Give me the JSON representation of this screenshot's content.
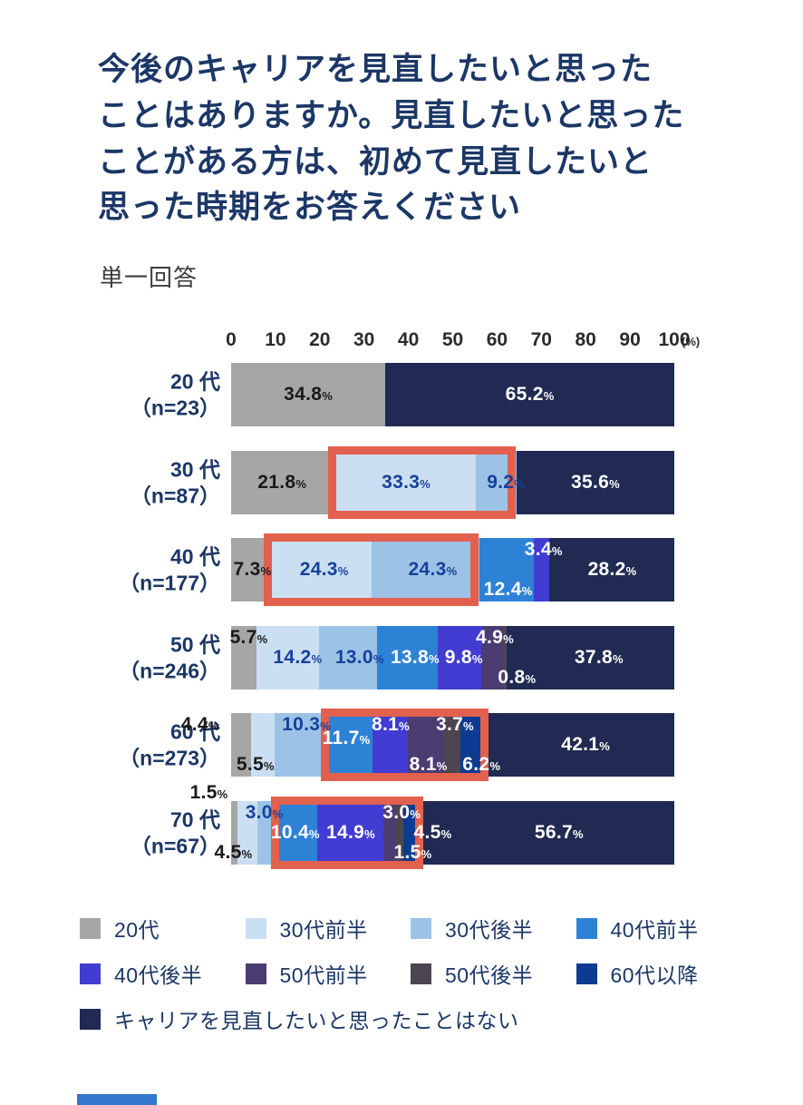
{
  "title": "今後のキャリアを見直したいと思った\nことはありますか。見直したいと思った\nことがある方は、初めて見直したいと\n思った時期をお答えください",
  "subtitle": "単一回答",
  "chart_data": {
    "type": "bar",
    "stacked": true,
    "orientation": "horizontal",
    "axis": {
      "ticks": [
        0,
        10,
        20,
        30,
        40,
        50,
        60,
        70,
        80,
        90,
        100
      ],
      "unit": "(%)",
      "range": [
        0,
        100
      ],
      "grid": false
    },
    "highlight_color": "#E2604E",
    "label_colors": {
      "black": "#1A1A1A",
      "blue": "#17419B",
      "white": "#FFFFFF"
    },
    "categories": [
      {
        "name": "20代",
        "color": "#A6A6A6"
      },
      {
        "name": "30代前半",
        "color": "#CBDFF2"
      },
      {
        "name": "30代後半",
        "color": "#9CC3E6"
      },
      {
        "name": "40代前半",
        "color": "#2E82D6"
      },
      {
        "name": "40代後半",
        "color": "#423CD2"
      },
      {
        "name": "50代前半",
        "color": "#4B3C72"
      },
      {
        "name": "50代後半",
        "color": "#4D4550"
      },
      {
        "name": "60代以降",
        "color": "#0E3B92"
      },
      {
        "name": "キャリアを見直したいと思ったことはない",
        "color": "#202A52"
      }
    ],
    "legend_layout": [
      4,
      4,
      1
    ],
    "rows": [
      {
        "label": "20 代",
        "n_label": "（n=23）",
        "segments": [
          {
            "category": "20代",
            "value": 34.8
          },
          {
            "category": "キャリアを見直したいと思ったことはない",
            "value": 65.2
          }
        ],
        "highlight": null,
        "value_labels": [
          {
            "text": "34.8%",
            "x": 17.4,
            "slot": "mid",
            "color": "black"
          },
          {
            "text": "65.2%",
            "x": 67.4,
            "slot": "mid",
            "color": "white"
          }
        ]
      },
      {
        "label": "30 代",
        "n_label": "（n=87）",
        "segments": [
          {
            "category": "20代",
            "value": 21.8
          },
          {
            "category": "30代前半",
            "value": 33.3
          },
          {
            "category": "30代後半",
            "value": 9.2
          },
          {
            "category": "キャリアを見直したいと思ったことはない",
            "value": 35.6
          }
        ],
        "highlight": {
          "from": 21.8,
          "to": 64.3
        },
        "value_labels": [
          {
            "text": "21.8%",
            "x": 11.5,
            "slot": "mid",
            "color": "black"
          },
          {
            "text": "33.3%",
            "x": 39.5,
            "slot": "mid",
            "color": "blue"
          },
          {
            "text": "9.2%",
            "x": 62.0,
            "slot": "mid",
            "color": "blue"
          },
          {
            "text": "35.6%",
            "x": 82.2,
            "slot": "mid",
            "color": "white"
          }
        ]
      },
      {
        "label": "40 代",
        "n_label": "（n=177）",
        "segments": [
          {
            "category": "20代",
            "value": 7.3
          },
          {
            "category": "30代前半",
            "value": 24.3
          },
          {
            "category": "30代後半",
            "value": 24.3
          },
          {
            "category": "40代前半",
            "value": 12.4
          },
          {
            "category": "40代後半",
            "value": 3.4
          },
          {
            "category": "キャリアを見直したいと思ったことはない",
            "value": 28.2
          }
        ],
        "highlight": {
          "from": 7.3,
          "to": 55.9
        },
        "value_labels": [
          {
            "text": "7.3%",
            "x": 4.8,
            "slot": "mid",
            "color": "black"
          },
          {
            "text": "24.3%",
            "x": 21.0,
            "slot": "mid",
            "color": "blue"
          },
          {
            "text": "24.3%",
            "x": 45.5,
            "slot": "mid",
            "color": "blue"
          },
          {
            "text": "12.4%",
            "x": 62.5,
            "slot": "bottom",
            "color": "white"
          },
          {
            "text": "3.4%",
            "x": 70.5,
            "slot": "top",
            "color": "white"
          },
          {
            "text": "28.2%",
            "x": 86.0,
            "slot": "mid",
            "color": "white"
          }
        ]
      },
      {
        "label": "50 代",
        "n_label": "（n=246）",
        "segments": [
          {
            "category": "20代",
            "value": 5.7
          },
          {
            "category": "30代前半",
            "value": 14.2
          },
          {
            "category": "30代後半",
            "value": 13.0
          },
          {
            "category": "40代前半",
            "value": 13.8
          },
          {
            "category": "40代後半",
            "value": 9.8
          },
          {
            "category": "50代前半",
            "value": 4.9
          },
          {
            "category": "50代後半",
            "value": 0.8
          },
          {
            "category": "キャリアを見直したいと思ったことはない",
            "value": 37.8
          }
        ],
        "highlight": null,
        "value_labels": [
          {
            "text": "5.7%",
            "x": 4.0,
            "slot": "top",
            "color": "black"
          },
          {
            "text": "14.2%",
            "x": 15.0,
            "slot": "mid",
            "color": "blue"
          },
          {
            "text": "13.0%",
            "x": 29.0,
            "slot": "mid",
            "color": "blue"
          },
          {
            "text": "13.8%",
            "x": 41.5,
            "slot": "mid",
            "color": "white"
          },
          {
            "text": "9.8%",
            "x": 52.5,
            "slot": "mid",
            "color": "white"
          },
          {
            "text": "4.9%",
            "x": 59.5,
            "slot": "top",
            "color": "white"
          },
          {
            "text": "0.8%",
            "x": 64.5,
            "slot": "bottom",
            "color": "white"
          },
          {
            "text": "37.8%",
            "x": 83.0,
            "slot": "mid",
            "color": "white"
          }
        ]
      },
      {
        "label": "60 代",
        "n_label": "（n=273）",
        "segments": [
          {
            "category": "20代",
            "value": 4.4
          },
          {
            "category": "30代前半",
            "value": 5.5
          },
          {
            "category": "30代後半",
            "value": 10.3
          },
          {
            "category": "40代前半",
            "value": 11.7
          },
          {
            "category": "40代後半",
            "value": 8.1
          },
          {
            "category": "50代前半",
            "value": 8.1
          },
          {
            "category": "50代後半",
            "value": 3.7
          },
          {
            "category": "60代以降",
            "value": 6.2
          },
          {
            "category": "キャリアを見直したいと思ったことはない",
            "value": 42.1
          }
        ],
        "highlight": {
          "from": 20.2,
          "to": 58.0
        },
        "value_labels": [
          {
            "text": "4.4%",
            "x": -7.0,
            "slot": "top",
            "color": "black"
          },
          {
            "text": "5.5%",
            "x": 5.5,
            "slot": "bottom",
            "color": "black"
          },
          {
            "text": "10.3%",
            "x": 17.0,
            "slot": "top",
            "color": "blue"
          },
          {
            "text": "11.7%",
            "x": 26.0,
            "slot": "midhigh",
            "color": "white"
          },
          {
            "text": "8.1%",
            "x": 36.0,
            "slot": "top",
            "color": "white"
          },
          {
            "text": "8.1%",
            "x": 44.5,
            "slot": "bottom",
            "color": "white"
          },
          {
            "text": "3.7%",
            "x": 50.5,
            "slot": "top",
            "color": "white"
          },
          {
            "text": "6.2%",
            "x": 56.5,
            "slot": "bottom",
            "color": "white"
          },
          {
            "text": "42.1%",
            "x": 80.0,
            "slot": "mid",
            "color": "white"
          }
        ]
      },
      {
        "label": "70 代",
        "n_label": "（n=67）",
        "segments": [
          {
            "category": "20代",
            "value": 1.5
          },
          {
            "category": "30代前半",
            "value": 4.5
          },
          {
            "category": "30代後半",
            "value": 3.0
          },
          {
            "category": "40代前半",
            "value": 10.4
          },
          {
            "category": "40代後半",
            "value": 14.9
          },
          {
            "category": "50代前半",
            "value": 3.0
          },
          {
            "category": "50代後半",
            "value": 1.5
          },
          {
            "category": "60代以降",
            "value": 4.5
          },
          {
            "category": "キャリアを見直したいと思ったことはない",
            "value": 56.7
          }
        ],
        "highlight": {
          "from": 9.0,
          "to": 43.3
        },
        "value_labels": [
          {
            "text": "1.5%",
            "x": -5.0,
            "slot": "above",
            "color": "black"
          },
          {
            "text": "3.0%",
            "x": 7.5,
            "slot": "top",
            "color": "blue"
          },
          {
            "text": "4.5%",
            "x": 0.5,
            "slot": "bottom",
            "color": "black"
          },
          {
            "text": "10.4%",
            "x": 14.5,
            "slot": "mid",
            "color": "white"
          },
          {
            "text": "14.9%",
            "x": 27.0,
            "slot": "mid",
            "color": "white"
          },
          {
            "text": "3.0%",
            "x": 38.5,
            "slot": "top",
            "color": "white"
          },
          {
            "text": "1.5%",
            "x": 41.0,
            "slot": "bottom",
            "color": "white"
          },
          {
            "text": "4.5%",
            "x": 45.5,
            "slot": "mid",
            "color": "white"
          },
          {
            "text": "56.7%",
            "x": 74.0,
            "slot": "mid",
            "color": "white"
          }
        ]
      }
    ]
  }
}
